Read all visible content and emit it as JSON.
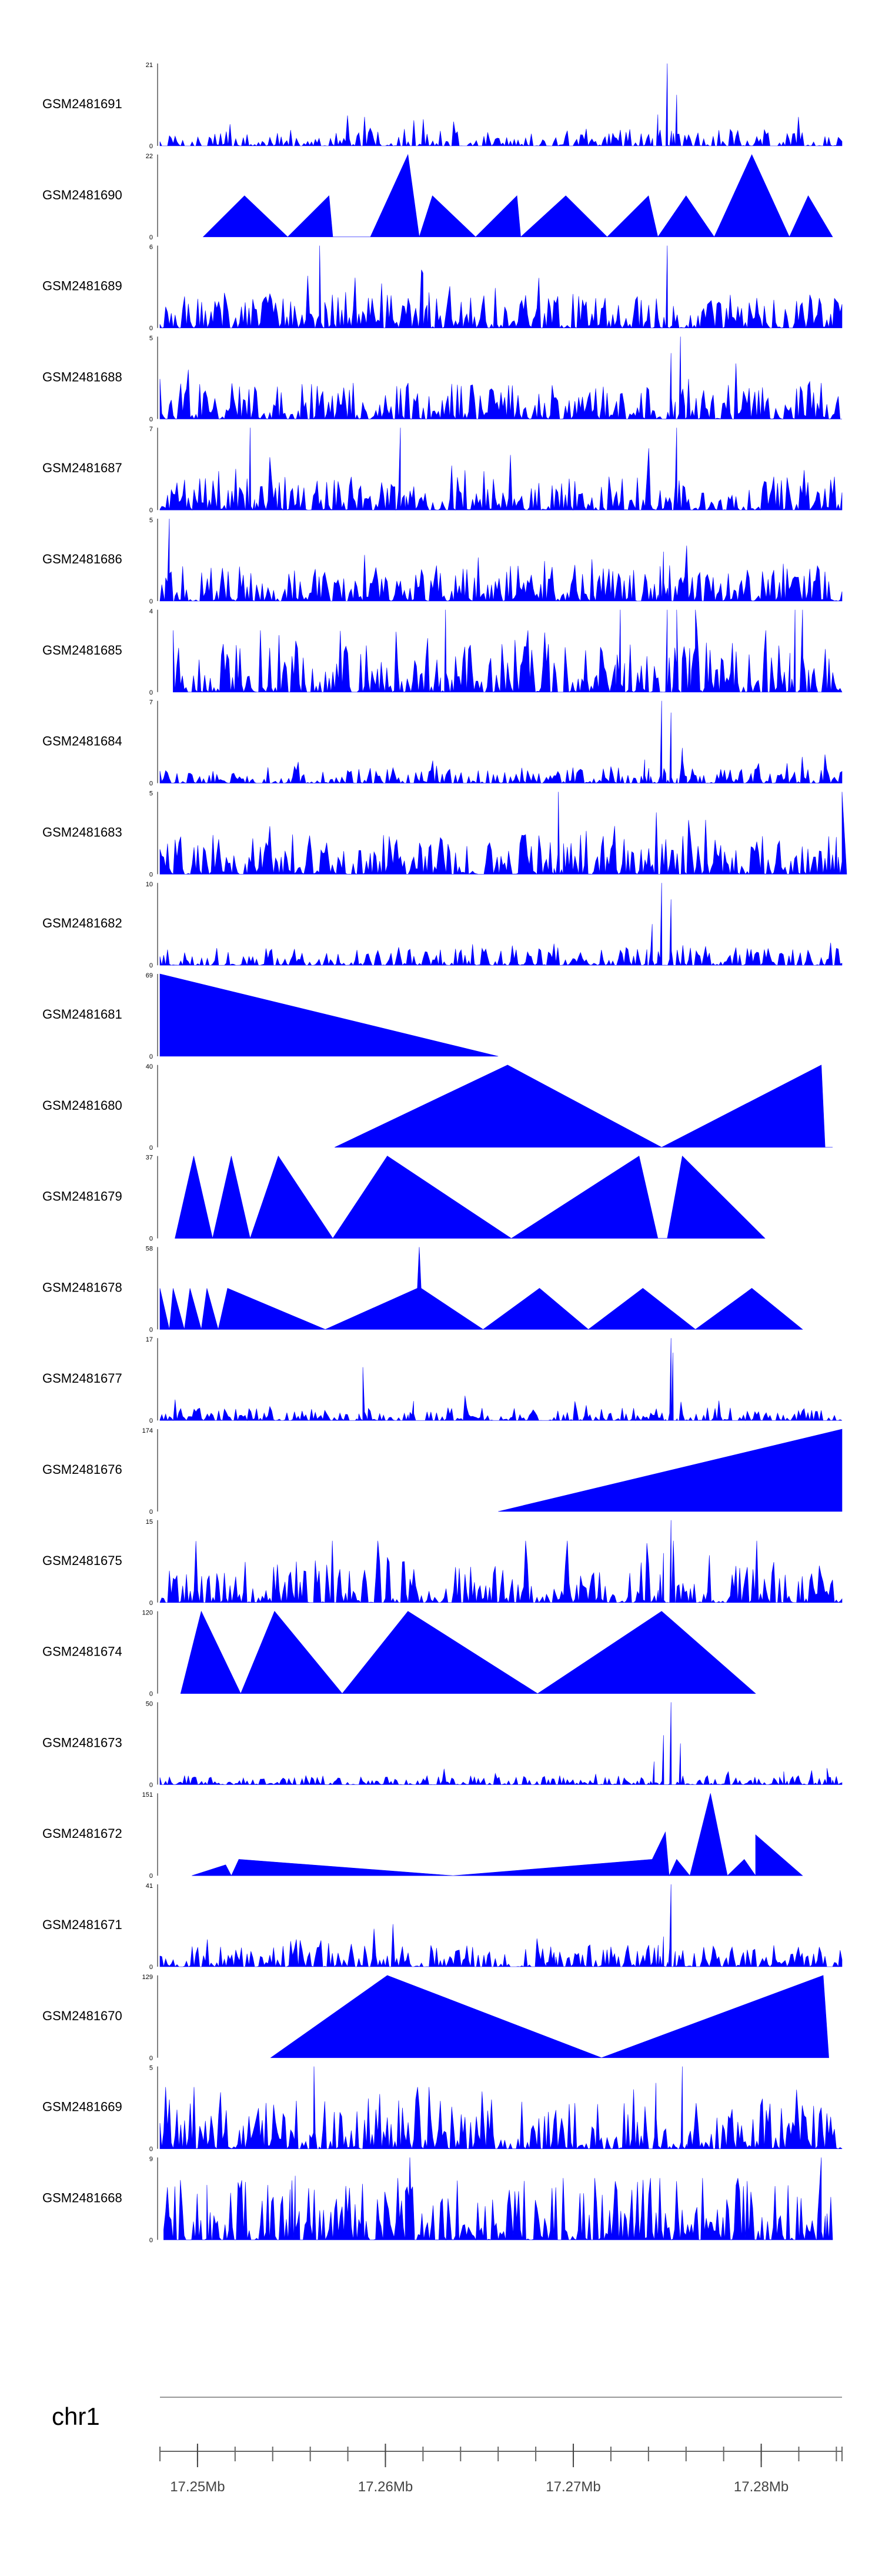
{
  "chart_data": {
    "type": "area",
    "title": "",
    "chromosome": "chr1",
    "x_axis": {
      "tick_labels": [
        "17.25Mb",
        "17.26Mb",
        "17.27Mb",
        "17.28Mb"
      ],
      "tick_values": [
        17.25,
        17.26,
        17.27,
        17.28
      ],
      "range": [
        17.248,
        17.2843
      ],
      "minor_step": 0.002
    },
    "series": [
      {
        "name": "GSM2481691",
        "ymax": 21,
        "style": "noise",
        "seed": 91,
        "base": 2,
        "density": 0.7,
        "peaks": [
          [
            17.275,
            21
          ],
          [
            17.2755,
            13
          ],
          [
            17.2745,
            8
          ]
        ]
      },
      {
        "name": "GSM2481690",
        "ymax": 22,
        "style": "points",
        "points": [
          [
            17.2503,
            0
          ],
          [
            17.2525,
            11
          ],
          [
            17.2548,
            0
          ],
          [
            17.257,
            11
          ],
          [
            17.2572,
            0
          ],
          [
            17.2592,
            0
          ],
          [
            17.2612,
            22
          ],
          [
            17.2618,
            0
          ],
          [
            17.2625,
            11
          ],
          [
            17.2648,
            0
          ],
          [
            17.267,
            11
          ],
          [
            17.2672,
            0
          ],
          [
            17.2696,
            11
          ],
          [
            17.2718,
            0
          ],
          [
            17.274,
            11
          ],
          [
            17.2745,
            0
          ],
          [
            17.276,
            11
          ],
          [
            17.2775,
            0
          ],
          [
            17.2795,
            22
          ],
          [
            17.2815,
            0
          ],
          [
            17.2825,
            11
          ],
          [
            17.2838,
            0
          ]
        ]
      },
      {
        "name": "GSM2481689",
        "ymax": 6,
        "style": "noise",
        "seed": 89,
        "base": 1.2,
        "density": 0.9,
        "peaks": [
          [
            17.2565,
            6
          ],
          [
            17.275,
            6
          ],
          [
            17.262,
            4
          ]
        ]
      },
      {
        "name": "GSM2481688",
        "ymax": 5,
        "style": "noise",
        "seed": 88,
        "base": 1.0,
        "density": 0.9,
        "peaks": [
          [
            17.2757,
            5
          ],
          [
            17.2752,
            4
          ]
        ]
      },
      {
        "name": "GSM2481687",
        "ymax": 7,
        "style": "noise",
        "seed": 87,
        "base": 1.3,
        "density": 0.9,
        "peaks": [
          [
            17.2528,
            7
          ],
          [
            17.2608,
            7
          ],
          [
            17.2755,
            7
          ]
        ]
      },
      {
        "name": "GSM2481686",
        "ymax": 5,
        "style": "noise",
        "seed": 86,
        "base": 1.0,
        "density": 0.9,
        "peaks": [
          [
            17.2485,
            5
          ],
          [
            17.2748,
            3
          ]
        ]
      },
      {
        "name": "GSM2481685",
        "ymax": 4,
        "style": "noise",
        "seed": 85,
        "base": 1.1,
        "density": 0.8,
        "start": 17.2487,
        "peaks": [
          [
            17.2632,
            4
          ],
          [
            17.2725,
            4
          ],
          [
            17.275,
            4
          ],
          [
            17.2755,
            4
          ],
          [
            17.2765,
            4
          ],
          [
            17.2818,
            4
          ],
          [
            17.2822,
            4
          ]
        ]
      },
      {
        "name": "GSM2481684",
        "ymax": 7,
        "style": "noise",
        "seed": 84,
        "base": 0.6,
        "density": 0.8,
        "peaks": [
          [
            17.2747,
            7
          ],
          [
            17.2752,
            6
          ],
          [
            17.2758,
            3
          ],
          [
            17.2738,
            2
          ]
        ]
      },
      {
        "name": "GSM2481683",
        "ymax": 5,
        "style": "noise",
        "seed": 83,
        "base": 1.1,
        "density": 0.9,
        "peaks": [
          [
            17.2692,
            5
          ],
          [
            17.2843,
            5
          ]
        ]
      },
      {
        "name": "GSM2481682",
        "ymax": 10,
        "style": "noise",
        "seed": 82,
        "base": 1.0,
        "density": 0.8,
        "peaks": [
          [
            17.2747,
            10
          ],
          [
            17.2752,
            8
          ],
          [
            17.2742,
            5
          ]
        ]
      },
      {
        "name": "GSM2481681",
        "ymax": 69,
        "style": "points",
        "points": [
          [
            17.248,
            69
          ],
          [
            17.266,
            0
          ]
        ]
      },
      {
        "name": "GSM2481680",
        "ymax": 40,
        "style": "points",
        "points": [
          [
            17.2573,
            0
          ],
          [
            17.2665,
            40
          ],
          [
            17.2747,
            0
          ],
          [
            17.2832,
            40
          ],
          [
            17.2834,
            0
          ],
          [
            17.2838,
            0
          ]
        ]
      },
      {
        "name": "GSM2481679",
        "ymax": 37,
        "style": "points",
        "points": [
          [
            17.2488,
            0
          ],
          [
            17.2498,
            37
          ],
          [
            17.2508,
            0
          ],
          [
            17.2518,
            37
          ],
          [
            17.2528,
            0
          ],
          [
            17.2543,
            37
          ],
          [
            17.2572,
            0
          ],
          [
            17.2601,
            37
          ],
          [
            17.2667,
            0
          ],
          [
            17.2735,
            37
          ],
          [
            17.2745,
            0
          ],
          [
            17.275,
            0
          ],
          [
            17.2758,
            37
          ],
          [
            17.2802,
            0
          ]
        ]
      },
      {
        "name": "GSM2481678",
        "ymax": 58,
        "style": "points",
        "points": [
          [
            17.248,
            29
          ],
          [
            17.2485,
            0
          ],
          [
            17.2487,
            29
          ],
          [
            17.2493,
            0
          ],
          [
            17.2496,
            29
          ],
          [
            17.2502,
            0
          ],
          [
            17.2505,
            29
          ],
          [
            17.2511,
            0
          ],
          [
            17.2516,
            29
          ],
          [
            17.2568,
            0
          ],
          [
            17.2617,
            29
          ],
          [
            17.2618,
            58
          ],
          [
            17.2619,
            29
          ],
          [
            17.2652,
            0
          ],
          [
            17.2682,
            29
          ],
          [
            17.2708,
            0
          ],
          [
            17.2737,
            29
          ],
          [
            17.2765,
            0
          ],
          [
            17.2795,
            29
          ],
          [
            17.2822,
            0
          ]
        ]
      },
      {
        "name": "GSM2481677",
        "ymax": 17,
        "style": "noise",
        "seed": 77,
        "base": 1.2,
        "density": 0.8,
        "peaks": [
          [
            17.2752,
            17
          ],
          [
            17.2753,
            14
          ],
          [
            17.2588,
            11
          ],
          [
            17.2615,
            4
          ]
        ]
      },
      {
        "name": "GSM2481676",
        "ymax": 174,
        "style": "points",
        "points": [
          [
            17.266,
            0
          ],
          [
            17.2843,
            174
          ]
        ]
      },
      {
        "name": "GSM2481675",
        "ymax": 15,
        "style": "noise",
        "seed": 75,
        "base": 3.5,
        "density": 0.8,
        "peaks": [
          [
            17.2752,
            15
          ],
          [
            17.2748,
            9
          ]
        ]
      },
      {
        "name": "GSM2481674",
        "ymax": 120,
        "style": "points",
        "points": [
          [
            17.2491,
            0
          ],
          [
            17.2502,
            120
          ],
          [
            17.2523,
            0
          ],
          [
            17.2541,
            120
          ],
          [
            17.2577,
            0
          ],
          [
            17.2612,
            120
          ],
          [
            17.2681,
            0
          ],
          [
            17.2747,
            120
          ],
          [
            17.2797,
            0
          ]
        ]
      },
      {
        "name": "GSM2481673",
        "ymax": 50,
        "style": "noise",
        "seed": 73,
        "base": 2.5,
        "density": 0.8,
        "peaks": [
          [
            17.2752,
            50
          ],
          [
            17.2748,
            30
          ],
          [
            17.2757,
            25
          ],
          [
            17.2743,
            14
          ],
          [
            17.2812,
            8
          ],
          [
            17.2835,
            10
          ]
        ]
      },
      {
        "name": "GSM2481672",
        "ymax": 151,
        "style": "points",
        "points": [
          [
            17.2497,
            0
          ],
          [
            17.2515,
            20
          ],
          [
            17.2518,
            0
          ],
          [
            17.2522,
            30
          ],
          [
            17.2636,
            0
          ],
          [
            17.2742,
            30
          ],
          [
            17.2749,
            80
          ],
          [
            17.2751,
            0
          ],
          [
            17.2755,
            30
          ],
          [
            17.2762,
            0
          ],
          [
            17.2773,
            151
          ],
          [
            17.2782,
            0
          ],
          [
            17.2791,
            30
          ],
          [
            17.2797,
            0
          ],
          [
            17.2797,
            75
          ],
          [
            17.2822,
            0
          ]
        ]
      },
      {
        "name": "GSM2481671",
        "ymax": 41,
        "style": "noise",
        "seed": 71,
        "base": 5,
        "density": 0.8,
        "peaks": [
          [
            17.2752,
            41
          ],
          [
            17.2748,
            15
          ],
          [
            17.2688,
            10
          ]
        ]
      },
      {
        "name": "GSM2481670",
        "ymax": 129,
        "style": "points",
        "points": [
          [
            17.2539,
            0
          ],
          [
            17.2601,
            129
          ],
          [
            17.2715,
            0
          ],
          [
            17.2833,
            129
          ],
          [
            17.2836,
            0
          ]
        ]
      },
      {
        "name": "GSM2481669",
        "ymax": 5,
        "style": "noise",
        "seed": 69,
        "base": 1.4,
        "density": 0.9,
        "peaks": [
          [
            17.2562,
            5
          ],
          [
            17.2758,
            5
          ],
          [
            17.2744,
            4
          ]
        ]
      },
      {
        "name": "GSM2481668",
        "ymax": 9,
        "style": "noise",
        "seed": 68,
        "base": 3,
        "density": 0.8,
        "start": 17.2482,
        "end": 17.2838,
        "peaks": [
          [
            17.2613,
            9
          ],
          [
            17.2832,
            9
          ],
          [
            17.2505,
            6
          ],
          [
            17.2552,
            7
          ]
        ]
      }
    ]
  }
}
